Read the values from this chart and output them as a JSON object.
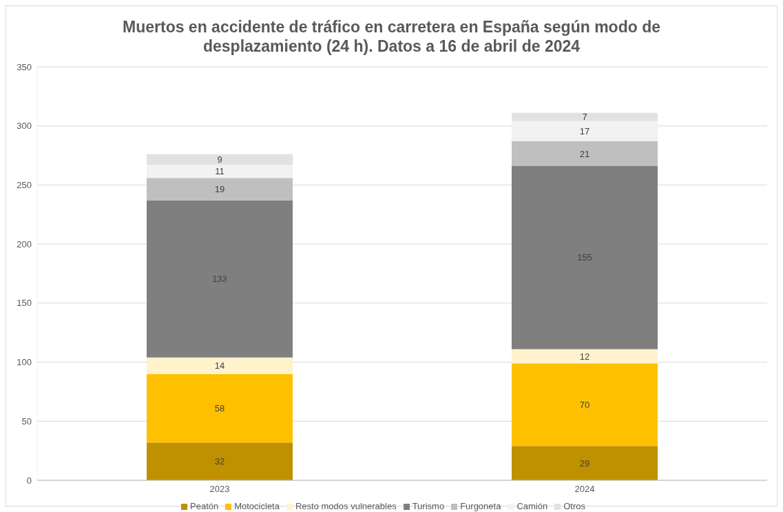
{
  "chart_data": {
    "type": "bar",
    "title": "Muertos en accidente de tráfico en carretera en España según modo de desplazamiento (24 h). Datos a 16 de abril de 2024",
    "categories": [
      "2023",
      "2024"
    ],
    "series": [
      {
        "name": "Peatón",
        "color": "#bf9000",
        "values": [
          32,
          29
        ]
      },
      {
        "name": "Motocicleta",
        "color": "#ffc000",
        "values": [
          58,
          70
        ]
      },
      {
        "name": "Resto modos vulnerables",
        "color": "#fff2cc",
        "values": [
          14,
          12
        ]
      },
      {
        "name": "Turismo",
        "color": "#7f7f7f",
        "values": [
          133,
          155
        ]
      },
      {
        "name": "Furgoneta",
        "color": "#bfbfbf",
        "values": [
          19,
          21
        ]
      },
      {
        "name": "Camión",
        "color": "#f2f2f2",
        "values": [
          11,
          17
        ]
      },
      {
        "name": "Otros",
        "color": "#e2e2e2",
        "values": [
          9,
          7
        ]
      }
    ],
    "stacked": true,
    "ylim": [
      0,
      350
    ],
    "yticks": [
      0,
      50,
      100,
      150,
      200,
      250,
      300,
      350
    ],
    "grid": "y",
    "legend": "bottom",
    "data_labels": true
  }
}
